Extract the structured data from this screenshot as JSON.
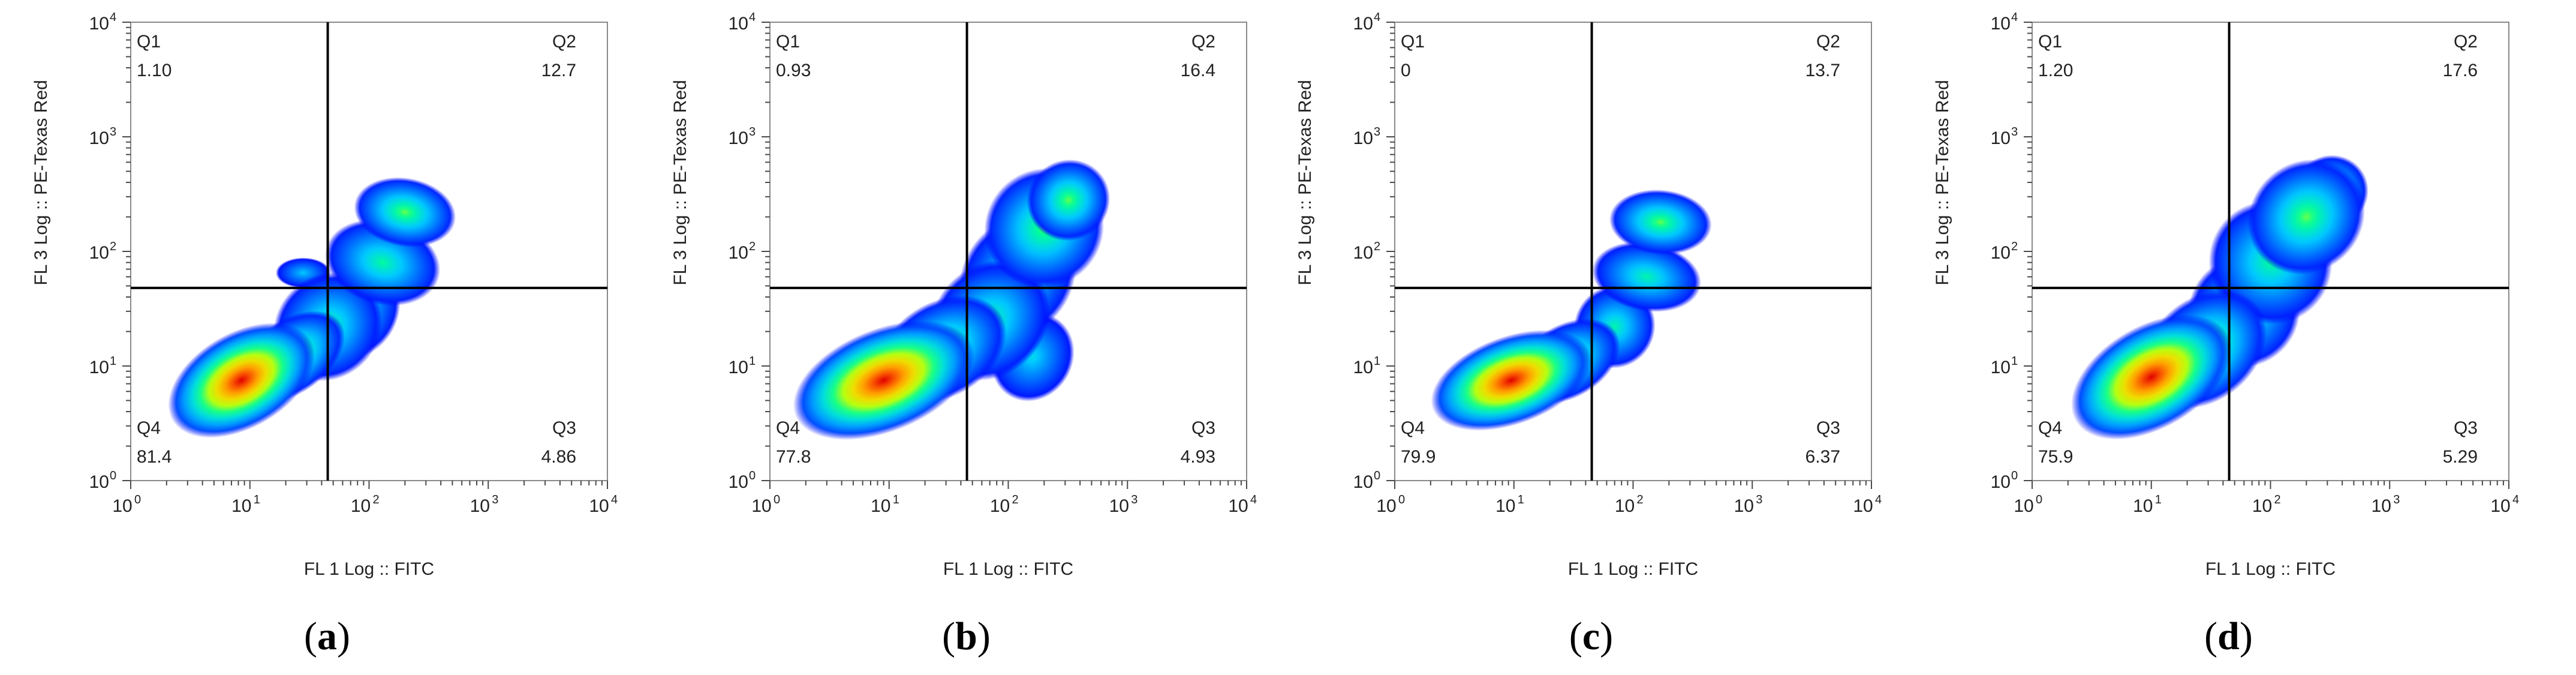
{
  "chart_data": [
    {
      "type": "scatter",
      "title": "",
      "caption_letter": "a",
      "xlabel": "FL 1 Log :: FITC",
      "ylabel": "FL 3 Log :: PE-Texas Red",
      "xscale": "log",
      "yscale": "log",
      "xlim": [
        1,
        10000
      ],
      "ylim": [
        1,
        10000
      ],
      "x_ticks": [
        {
          "base": "10",
          "exp": "0"
        },
        {
          "base": "10",
          "exp": "1"
        },
        {
          "base": "10",
          "exp": "2"
        },
        {
          "base": "10",
          "exp": "3"
        },
        {
          "base": "10",
          "exp": "4"
        }
      ],
      "y_ticks": [
        {
          "base": "10",
          "exp": "0"
        },
        {
          "base": "10",
          "exp": "1"
        },
        {
          "base": "10",
          "exp": "2"
        },
        {
          "base": "10",
          "exp": "3"
        },
        {
          "base": "10",
          "exp": "4"
        }
      ],
      "gate": {
        "x": 45,
        "y": 48
      },
      "quadrants": [
        {
          "name": "Q1",
          "value": "1.10",
          "position": "top-left"
        },
        {
          "name": "Q2",
          "value": "12.7",
          "position": "top-right"
        },
        {
          "name": "Q3",
          "value": "4.86",
          "position": "bottom-right"
        },
        {
          "name": "Q4",
          "value": "81.4",
          "position": "bottom-left"
        }
      ],
      "density_blobs": [
        {
          "x": 8.5,
          "y": 7.5,
          "sx": 0.42,
          "sy": 0.26,
          "angle": 30,
          "peak": 1.0
        },
        {
          "x": 22,
          "y": 12,
          "sx": 0.32,
          "sy": 0.2,
          "angle": 35,
          "peak": 0.55
        },
        {
          "x": 45,
          "y": 22,
          "sx": 0.3,
          "sy": 0.28,
          "angle": 45,
          "peak": 0.42
        },
        {
          "x": 80,
          "y": 30,
          "sx": 0.26,
          "sy": 0.22,
          "angle": 60,
          "peak": 0.38
        },
        {
          "x": 130,
          "y": 80,
          "sx": 0.22,
          "sy": 0.32,
          "angle": 75,
          "peak": 0.42
        },
        {
          "x": 200,
          "y": 220,
          "sx": 0.18,
          "sy": 0.28,
          "angle": 80,
          "peak": 0.5
        },
        {
          "x": 28,
          "y": 65,
          "sx": 0.08,
          "sy": 0.15,
          "angle": 90,
          "peak": 0.28
        }
      ]
    },
    {
      "type": "scatter",
      "title": "",
      "caption_letter": "b",
      "xlabel": "FL 1 Log :: FITC",
      "ylabel": "FL 3 Log :: PE-Texas Red",
      "xscale": "log",
      "yscale": "log",
      "xlim": [
        1,
        10000
      ],
      "ylim": [
        1,
        10000
      ],
      "x_ticks": [
        {
          "base": "10",
          "exp": "0"
        },
        {
          "base": "10",
          "exp": "1"
        },
        {
          "base": "10",
          "exp": "2"
        },
        {
          "base": "10",
          "exp": "3"
        },
        {
          "base": "10",
          "exp": "4"
        }
      ],
      "y_ticks": [
        {
          "base": "10",
          "exp": "0"
        },
        {
          "base": "10",
          "exp": "1"
        },
        {
          "base": "10",
          "exp": "2"
        },
        {
          "base": "10",
          "exp": "3"
        },
        {
          "base": "10",
          "exp": "4"
        }
      ],
      "gate": {
        "x": 45,
        "y": 48
      },
      "quadrants": [
        {
          "name": "Q1",
          "value": "0.93",
          "position": "top-left"
        },
        {
          "name": "Q2",
          "value": "16.4",
          "position": "top-right"
        },
        {
          "name": "Q3",
          "value": "4.93",
          "position": "bottom-right"
        },
        {
          "name": "Q4",
          "value": "77.8",
          "position": "bottom-left"
        }
      ],
      "density_blobs": [
        {
          "x": 9,
          "y": 7.5,
          "sx": 0.5,
          "sy": 0.28,
          "angle": 22,
          "peak": 1.0
        },
        {
          "x": 28,
          "y": 14,
          "sx": 0.36,
          "sy": 0.26,
          "angle": 30,
          "peak": 0.5
        },
        {
          "x": 70,
          "y": 25,
          "sx": 0.34,
          "sy": 0.3,
          "angle": 45,
          "peak": 0.42
        },
        {
          "x": 120,
          "y": 60,
          "sx": 0.34,
          "sy": 0.3,
          "angle": 55,
          "peak": 0.4
        },
        {
          "x": 200,
          "y": 160,
          "sx": 0.32,
          "sy": 0.32,
          "angle": 45,
          "peak": 0.48
        },
        {
          "x": 320,
          "y": 280,
          "sx": 0.22,
          "sy": 0.22,
          "angle": 30,
          "peak": 0.5
        },
        {
          "x": 160,
          "y": 12,
          "sx": 0.24,
          "sy": 0.22,
          "angle": 60,
          "peak": 0.32
        }
      ]
    },
    {
      "type": "scatter",
      "title": "",
      "caption_letter": "c",
      "xlabel": "FL 1 Log :: FITC",
      "ylabel": "FL 3 Log :: PE-Texas Red",
      "xscale": "log",
      "yscale": "log",
      "xlim": [
        1,
        10000
      ],
      "ylim": [
        1,
        10000
      ],
      "x_ticks": [
        {
          "base": "10",
          "exp": "0"
        },
        {
          "base": "10",
          "exp": "1"
        },
        {
          "base": "10",
          "exp": "2"
        },
        {
          "base": "10",
          "exp": "3"
        },
        {
          "base": "10",
          "exp": "4"
        }
      ],
      "y_ticks": [
        {
          "base": "10",
          "exp": "0"
        },
        {
          "base": "10",
          "exp": "1"
        },
        {
          "base": "10",
          "exp": "2"
        },
        {
          "base": "10",
          "exp": "3"
        },
        {
          "base": "10",
          "exp": "4"
        }
      ],
      "gate": {
        "x": 45,
        "y": 48
      },
      "quadrants": [
        {
          "name": "Q1",
          "value": "0",
          "position": "top-left"
        },
        {
          "name": "Q2",
          "value": "13.7",
          "position": "top-right"
        },
        {
          "name": "Q3",
          "value": "6.37",
          "position": "bottom-right"
        },
        {
          "name": "Q4",
          "value": "79.9",
          "position": "bottom-left"
        }
      ],
      "density_blobs": [
        {
          "x": 9.5,
          "y": 7.5,
          "sx": 0.44,
          "sy": 0.24,
          "angle": 20,
          "peak": 1.0
        },
        {
          "x": 28,
          "y": 11,
          "sx": 0.3,
          "sy": 0.2,
          "angle": 30,
          "peak": 0.5
        },
        {
          "x": 70,
          "y": 22,
          "sx": 0.22,
          "sy": 0.22,
          "angle": 60,
          "peak": 0.4
        },
        {
          "x": 130,
          "y": 60,
          "sx": 0.18,
          "sy": 0.3,
          "angle": 80,
          "peak": 0.4
        },
        {
          "x": 170,
          "y": 180,
          "sx": 0.17,
          "sy": 0.28,
          "angle": 85,
          "peak": 0.5
        }
      ]
    },
    {
      "type": "scatter",
      "title": "",
      "caption_letter": "d",
      "xlabel": "FL 1 Log :: FITC",
      "ylabel": "FL 3 Log :: PE-Texas Red",
      "xscale": "log",
      "yscale": "log",
      "xlim": [
        1,
        10000
      ],
      "ylim": [
        1,
        10000
      ],
      "x_ticks": [
        {
          "base": "10",
          "exp": "0"
        },
        {
          "base": "10",
          "exp": "1"
        },
        {
          "base": "10",
          "exp": "2"
        },
        {
          "base": "10",
          "exp": "3"
        },
        {
          "base": "10",
          "exp": "4"
        }
      ],
      "y_ticks": [
        {
          "base": "10",
          "exp": "0"
        },
        {
          "base": "10",
          "exp": "1"
        },
        {
          "base": "10",
          "exp": "2"
        },
        {
          "base": "10",
          "exp": "3"
        },
        {
          "base": "10",
          "exp": "4"
        }
      ],
      "gate": {
        "x": 45,
        "y": 48
      },
      "quadrants": [
        {
          "name": "Q1",
          "value": "1.20",
          "position": "top-left"
        },
        {
          "name": "Q2",
          "value": "17.6",
          "position": "top-right"
        },
        {
          "name": "Q3",
          "value": "5.29",
          "position": "bottom-right"
        },
        {
          "name": "Q4",
          "value": "75.9",
          "position": "bottom-left"
        }
      ],
      "density_blobs": [
        {
          "x": 10,
          "y": 8,
          "sx": 0.46,
          "sy": 0.28,
          "angle": 30,
          "peak": 1.0
        },
        {
          "x": 28,
          "y": 14,
          "sx": 0.36,
          "sy": 0.28,
          "angle": 40,
          "peak": 0.55
        },
        {
          "x": 60,
          "y": 30,
          "sx": 0.3,
          "sy": 0.3,
          "angle": 45,
          "peak": 0.42
        },
        {
          "x": 100,
          "y": 80,
          "sx": 0.32,
          "sy": 0.34,
          "angle": 45,
          "peak": 0.42
        },
        {
          "x": 200,
          "y": 200,
          "sx": 0.32,
          "sy": 0.3,
          "angle": 40,
          "peak": 0.5
        },
        {
          "x": 320,
          "y": 330,
          "sx": 0.2,
          "sy": 0.2,
          "angle": 30,
          "peak": 0.48
        }
      ]
    }
  ],
  "colors": {
    "colormap": [
      "#0000ff",
      "#0066ff",
      "#00ccff",
      "#00ff99",
      "#ccff00",
      "#ffcc00",
      "#ff6600",
      "#e00000"
    ],
    "gate_line": "#000000",
    "frame": "#8a8a8a"
  }
}
